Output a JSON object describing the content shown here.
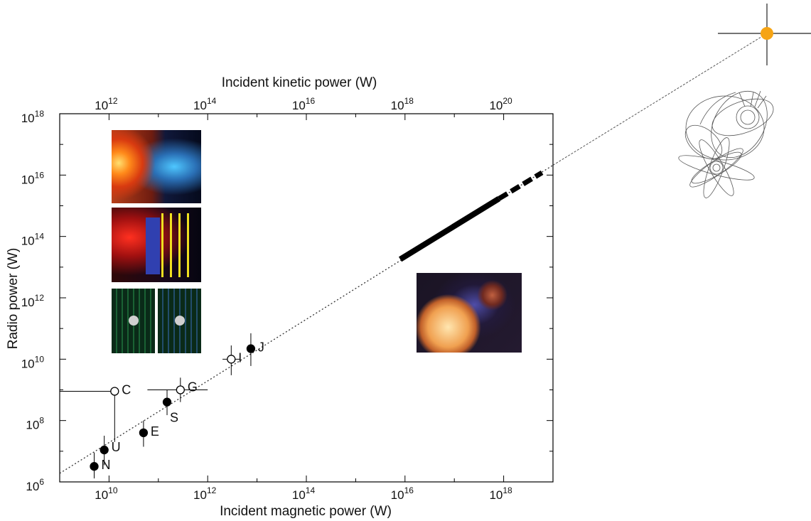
{
  "chart_data": {
    "type": "scatter",
    "title": "",
    "xlabel": "Incident magnetic power (W)",
    "x2label": "Incident kinetic power (W)",
    "ylabel": "Radio power (W)",
    "xscale": "log",
    "yscale": "log",
    "xlim": [
      1000000000.0,
      1e+19
    ],
    "x2lim": [
      100000000000.0,
      1e+21
    ],
    "ylim": [
      1000000.0,
      1e+18
    ],
    "xticks": [
      {
        "base": "10",
        "exp": "10",
        "value": 10000000000.0
      },
      {
        "base": "10",
        "exp": "12",
        "value": 1000000000000.0
      },
      {
        "base": "10",
        "exp": "14",
        "value": 100000000000000.0
      },
      {
        "base": "10",
        "exp": "16",
        "value": 1e+16
      },
      {
        "base": "10",
        "exp": "18",
        "value": 1e+18
      }
    ],
    "x2ticks": [
      {
        "base": "10",
        "exp": "12",
        "value": 1000000000000.0
      },
      {
        "base": "10",
        "exp": "14",
        "value": 100000000000000.0
      },
      {
        "base": "10",
        "exp": "16",
        "value": 1e+16
      },
      {
        "base": "10",
        "exp": "18",
        "value": 1e+18
      },
      {
        "base": "10",
        "exp": "20",
        "value": 1e+20
      }
    ],
    "yticks": [
      {
        "base": "10",
        "exp": "6",
        "value": 1000000.0
      },
      {
        "base": "10",
        "exp": "8",
        "value": 100000000.0
      },
      {
        "base": "10",
        "exp": "10",
        "value": 10000000000.0
      },
      {
        "base": "10",
        "exp": "12",
        "value": 1000000000000.0
      },
      {
        "base": "10",
        "exp": "14",
        "value": 100000000000000.0
      },
      {
        "base": "10",
        "exp": "16",
        "value": 1e+16
      },
      {
        "base": "10",
        "exp": "18",
        "value": 1e+18
      }
    ],
    "points": [
      {
        "label": "N",
        "x": 5000000000.0,
        "y": 3200000.0,
        "filled": true,
        "yerr": [
          1300000.0,
          9000000.0
        ]
      },
      {
        "label": "U",
        "x": 8000000000.0,
        "y": 11000000.0,
        "filled": true,
        "yerr": [
          3500000.0,
          32000000.0
        ]
      },
      {
        "label": "E",
        "x": 50000000000.0,
        "y": 40000000.0,
        "filled": true,
        "yerr": [
          14000000.0,
          100000000.0
        ]
      },
      {
        "label": "C",
        "x": 13000000000.0,
        "y": 900000000.0,
        "filled": false,
        "xerr": [
          1000000000.0,
          13000000000.0
        ],
        "yerr": [
          20000000.0,
          900000000.0
        ]
      },
      {
        "label": "S",
        "x": 150000000000.0,
        "y": 400000000.0,
        "filled": true,
        "yerr": [
          150000000.0,
          1000000000.0
        ]
      },
      {
        "label": "G",
        "x": 280000000000.0,
        "y": 1000000000.0,
        "filled": false,
        "xerr": [
          60000000000.0,
          1000000000000.0
        ],
        "yerr": [
          400000000.0,
          2500000000.0
        ]
      },
      {
        "label": "I",
        "x": 3000000000000.0,
        "y": 10000000000.0,
        "filled": false,
        "xerr": [
          2000000000000.0,
          4500000000000.0
        ],
        "yerr": [
          3000000000.0,
          28000000000.0
        ]
      },
      {
        "label": "J",
        "x": 7500000000000.0,
        "y": 22000000000.0,
        "filled": true,
        "yerr": [
          6000000000.0,
          70000000000.0
        ]
      }
    ],
    "fit_line": {
      "x": [
        1000000000.0,
        1e+19
      ],
      "y": [
        1900000.0,
        2.1e+16
      ]
    },
    "predicted_range_solid": {
      "x": [
        8000000000000000.0,
        8e+17
      ],
      "y": [
        18000000000000.0,
        1700000000000000.0
      ]
    },
    "predicted_range_dashed": {
      "x": [
        8e+17,
        6e+18
      ],
      "y": [
        1700000000000000.0,
        1.2e+16
      ]
    }
  }
}
